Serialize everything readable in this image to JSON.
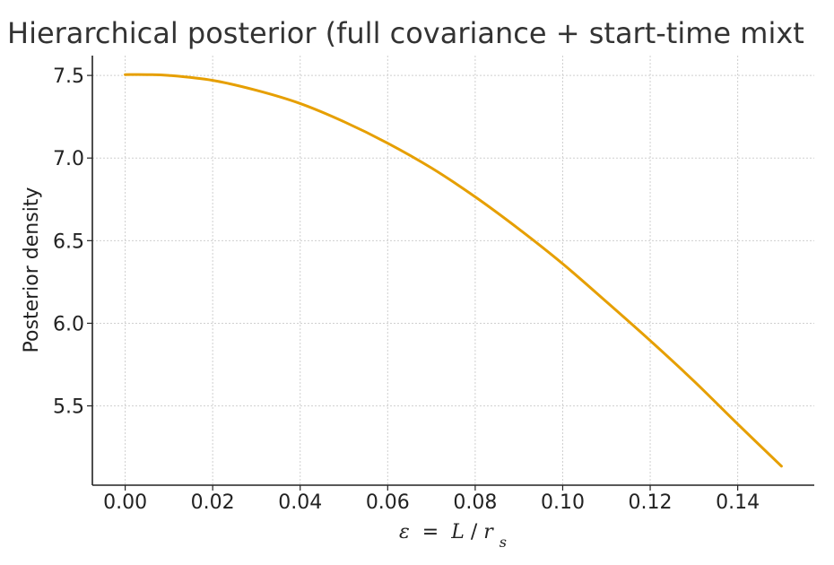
{
  "chart_data": {
    "type": "line",
    "title": "Hierarchical posterior (full covariance + start-time mixt",
    "xlabel": {
      "epsilon": "ε",
      "equals": " = ",
      "numerator": "L",
      "slash": "/",
      "r": "r",
      "subscript": "s"
    },
    "ylabel": "Posterior density",
    "xlim": [
      -0.0075,
      0.1575
    ],
    "ylim": [
      5.02,
      7.62
    ],
    "x_ticks": [
      0.0,
      0.02,
      0.04,
      0.06,
      0.08,
      0.1,
      0.12,
      0.14
    ],
    "x_tick_labels": [
      "0.00",
      "0.02",
      "0.04",
      "0.06",
      "0.08",
      "0.10",
      "0.12",
      "0.14"
    ],
    "y_ticks": [
      5.5,
      6.0,
      6.5,
      7.0,
      7.5
    ],
    "y_tick_labels": [
      "5.5",
      "6.0",
      "6.5",
      "7.0",
      "7.5"
    ],
    "grid": true,
    "series": [
      {
        "color": "#E69F00",
        "x": [
          0.0,
          0.005,
          0.01,
          0.02,
          0.03,
          0.04,
          0.05,
          0.06,
          0.07,
          0.08,
          0.09,
          0.1,
          0.11,
          0.12,
          0.13,
          0.14,
          0.15
        ],
        "y": [
          7.505,
          7.505,
          7.5,
          7.47,
          7.41,
          7.33,
          7.22,
          7.09,
          6.94,
          6.765,
          6.57,
          6.36,
          6.13,
          5.895,
          5.65,
          5.39,
          5.135
        ]
      }
    ]
  }
}
